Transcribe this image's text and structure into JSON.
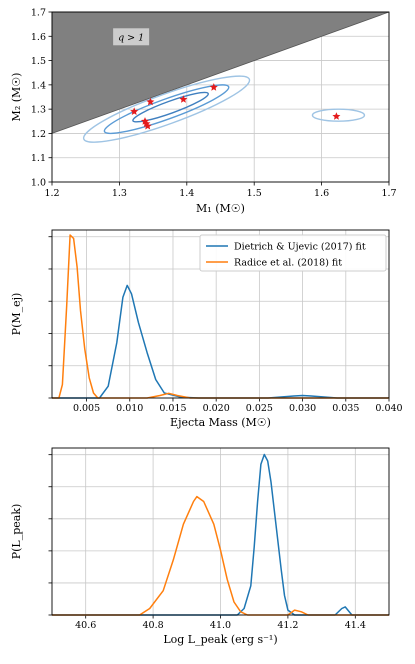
{
  "chart_data": [
    {
      "type": "scatter",
      "xlabel": "M₁ (M☉)",
      "ylabel": "M₂ (M☉)",
      "xlim": [
        1.2,
        1.7
      ],
      "ylim": [
        1.0,
        1.7
      ],
      "xticks": [
        "1.2",
        "1.3",
        "1.4",
        "1.5",
        "1.6",
        "1.7"
      ],
      "yticks": [
        "1.0",
        "1.1",
        "1.2",
        "1.3",
        "1.4",
        "1.5",
        "1.6",
        "1.7"
      ],
      "grid": true,
      "annotation": "q > 1",
      "shaded_region": "M₂ > M₁",
      "colors": {
        "shade": "#808080",
        "contour": "#5b9bd5",
        "contour_light": "#9fc4e4",
        "marker": "#e41a1c"
      },
      "points": [
        {
          "x": 1.322,
          "y": 1.29
        },
        {
          "x": 1.338,
          "y": 1.25
        },
        {
          "x": 1.34,
          "y": 1.24
        },
        {
          "x": 1.342,
          "y": 1.23
        },
        {
          "x": 1.346,
          "y": 1.33
        },
        {
          "x": 1.395,
          "y": 1.34
        },
        {
          "x": 1.44,
          "y": 1.39
        },
        {
          "x": 1.622,
          "y": 1.27
        }
      ]
    },
    {
      "type": "line",
      "xlabel": "Ejecta Mass (M☉)",
      "ylabel": "P(M_ej)",
      "xlim": [
        0.001,
        0.04
      ],
      "xticks": [
        "0.005",
        "0.010",
        "0.015",
        "0.020",
        "0.025",
        "0.030",
        "0.035",
        "0.040"
      ],
      "grid": true,
      "legend": "top-right",
      "series": [
        {
          "name": "Dietrich & Ujevic (2017) fit",
          "color": "#1f77b4",
          "x": [
            0.001,
            0.0065,
            0.0075,
            0.0085,
            0.0092,
            0.0097,
            0.0102,
            0.011,
            0.012,
            0.013,
            0.014,
            0.016,
            0.018,
            0.026,
            0.029,
            0.03,
            0.031,
            0.034,
            0.04
          ],
          "y": [
            0.0,
            0.0,
            0.07,
            0.33,
            0.6,
            0.67,
            0.62,
            0.45,
            0.27,
            0.11,
            0.03,
            0.004,
            0.0,
            0.0,
            0.012,
            0.015,
            0.012,
            0.0,
            0.0
          ]
        },
        {
          "name": "Radice et al. (2018) fit",
          "color": "#ff7f0e",
          "x": [
            0.001,
            0.0018,
            0.0022,
            0.0027,
            0.0031,
            0.0035,
            0.0039,
            0.0043,
            0.0048,
            0.0053,
            0.0058,
            0.0063,
            0.012,
            0.0135,
            0.0145,
            0.0155,
            0.017,
            0.04
          ],
          "y": [
            0.0,
            0.0,
            0.08,
            0.55,
            0.97,
            0.95,
            0.78,
            0.52,
            0.29,
            0.12,
            0.03,
            0.0,
            0.0,
            0.015,
            0.028,
            0.015,
            0.0,
            0.0
          ]
        }
      ]
    },
    {
      "type": "line",
      "xlabel": "Log L_peak (erg s⁻¹)",
      "ylabel": "P(L_peak)",
      "xlim": [
        40.5,
        41.5
      ],
      "xticks": [
        "40.6",
        "40.8",
        "41.0",
        "41.2",
        "41.4"
      ],
      "grid": true,
      "series": [
        {
          "name": "Dietrich & Ujevic (2017) fit",
          "color": "#1f77b4",
          "x": [
            40.5,
            41.05,
            41.07,
            41.09,
            41.1,
            41.11,
            41.12,
            41.13,
            41.14,
            41.15,
            41.16,
            41.18,
            41.19,
            41.2,
            41.22,
            41.34,
            41.36,
            41.37,
            41.39,
            41.5
          ],
          "y": [
            0.0,
            0.0,
            0.04,
            0.18,
            0.42,
            0.7,
            0.93,
            0.99,
            0.95,
            0.82,
            0.64,
            0.28,
            0.12,
            0.03,
            0.0,
            0.0,
            0.04,
            0.05,
            0.0,
            0.0
          ]
        },
        {
          "name": "Radice et al. (2018) fit",
          "color": "#ff7f0e",
          "x": [
            40.5,
            40.76,
            40.79,
            40.83,
            40.86,
            40.89,
            40.92,
            40.93,
            40.95,
            40.98,
            41.0,
            41.02,
            41.04,
            41.06,
            41.08,
            41.2,
            41.22,
            41.24,
            41.26,
            41.5
          ],
          "y": [
            0.0,
            0.0,
            0.04,
            0.15,
            0.34,
            0.56,
            0.7,
            0.73,
            0.7,
            0.56,
            0.4,
            0.22,
            0.08,
            0.02,
            0.0,
            0.0,
            0.03,
            0.02,
            0.0,
            0.0
          ]
        }
      ]
    }
  ]
}
